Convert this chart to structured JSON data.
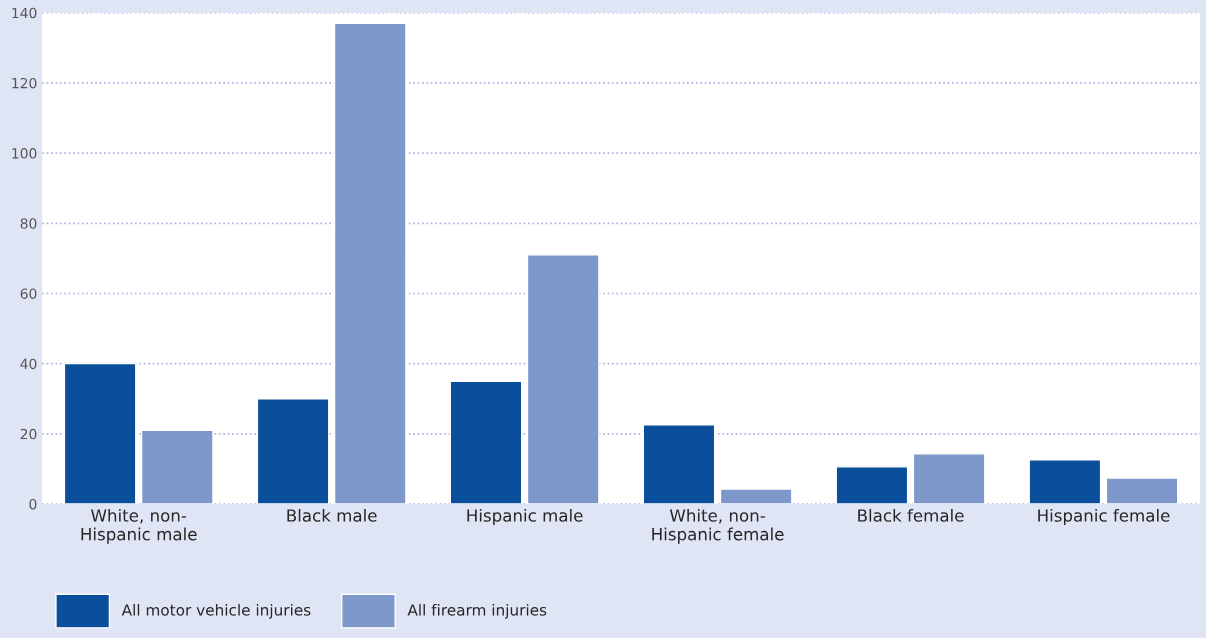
{
  "chart_data": {
    "type": "bar",
    "categories": [
      "White, non-\nHispanic male",
      "Black male",
      "Hispanic male",
      "White, non-\nHispanic female",
      "Black female",
      "Hispanic female"
    ],
    "series": [
      {
        "name": "All motor vehicle injuries",
        "color": "#0a4f9c",
        "values": [
          40,
          30,
          35,
          22.6,
          10.6,
          12.6
        ]
      },
      {
        "name": "All firearm injuries",
        "color": "#7f98cc",
        "values": [
          21,
          137,
          71,
          4.3,
          14.3,
          7.4
        ]
      }
    ],
    "ylim": [
      0,
      140
    ],
    "yticks": [
      0,
      20,
      40,
      60,
      80,
      100,
      120,
      140
    ],
    "grid": "y",
    "legend": "bottom left"
  }
}
